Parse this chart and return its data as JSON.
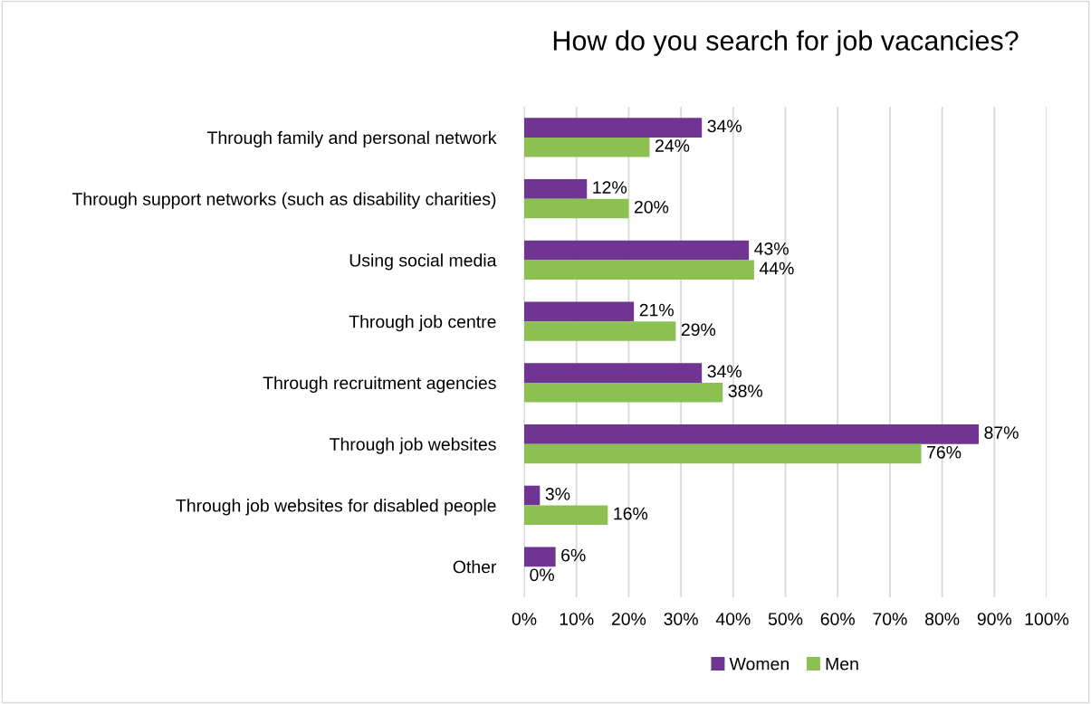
{
  "chart_data": {
    "type": "bar",
    "orientation": "horizontal",
    "title": "How do you search for job vacancies?",
    "categories": [
      "Through family and personal network",
      "Through support networks (such as disability charities)",
      "Using social media",
      "Through job centre",
      "Through recruitment agencies",
      "Through job websites",
      "Through job websites for disabled people",
      "Other"
    ],
    "series": [
      {
        "name": "Women",
        "color": "#703593",
        "values": [
          34,
          12,
          43,
          21,
          34,
          87,
          3,
          6
        ],
        "value_labels": [
          "34%",
          "12%",
          "43%",
          "21%",
          "34%",
          "87%",
          "3%",
          "6%"
        ]
      },
      {
        "name": "Men",
        "color": "#8cc152",
        "values": [
          24,
          20,
          44,
          29,
          38,
          76,
          16,
          0
        ],
        "value_labels": [
          "24%",
          "20%",
          "44%",
          "29%",
          "38%",
          "76%",
          "16%",
          "0%"
        ]
      }
    ],
    "xlim": [
      0,
      100
    ],
    "xticks": [
      {
        "value": 0,
        "label": "0%"
      },
      {
        "value": 10,
        "label": "10%"
      },
      {
        "value": 20,
        "label": "20%"
      },
      {
        "value": 30,
        "label": "30%"
      },
      {
        "value": 40,
        "label": "40%"
      },
      {
        "value": 50,
        "label": "50%"
      },
      {
        "value": 60,
        "label": "60%"
      },
      {
        "value": 70,
        "label": "70%"
      },
      {
        "value": 80,
        "label": "80%"
      },
      {
        "value": 90,
        "label": "90%"
      },
      {
        "value": 100,
        "label": "100%"
      }
    ],
    "grid": "x",
    "legend": "bottom"
  }
}
